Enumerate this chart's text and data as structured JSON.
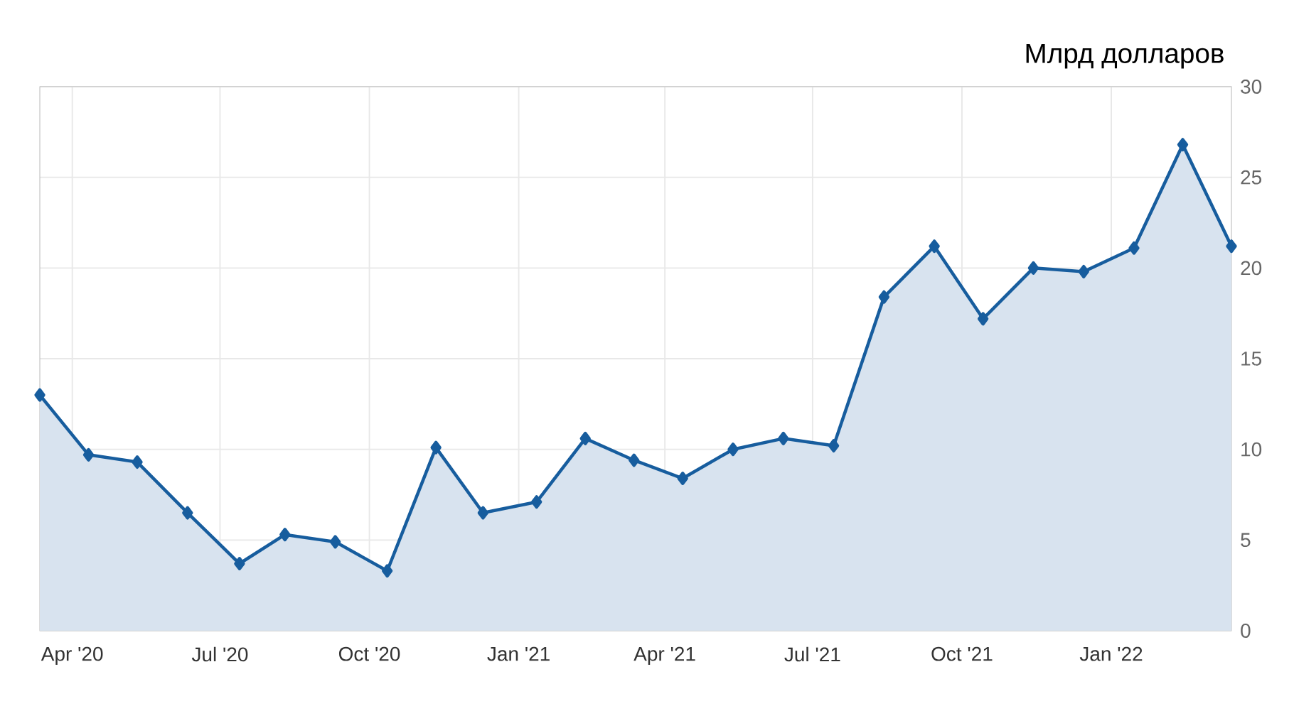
{
  "chart_data": {
    "type": "area",
    "ylabel": "Млрд долларов",
    "x": [
      "2020-03-12",
      "2020-04-11",
      "2020-05-11",
      "2020-06-11",
      "2020-07-13",
      "2020-08-10",
      "2020-09-10",
      "2020-10-12",
      "2020-11-11",
      "2020-12-10",
      "2021-01-12",
      "2021-02-11",
      "2021-03-13",
      "2021-04-12",
      "2021-05-13",
      "2021-06-13",
      "2021-07-14",
      "2021-08-14",
      "2021-09-14",
      "2021-10-14",
      "2021-11-14",
      "2021-12-15",
      "2022-01-15",
      "2022-02-14",
      "2022-03-16"
    ],
    "series": [
      {
        "color": "#175d9e",
        "values": [
          13.0,
          9.7,
          9.3,
          6.5,
          3.7,
          5.3,
          4.9,
          3.3,
          10.1,
          6.5,
          7.1,
          10.6,
          9.4,
          8.4,
          10.0,
          10.6,
          10.2,
          18.4,
          21.2,
          17.2,
          20.0,
          19.8,
          21.1,
          26.8,
          21.2
        ]
      }
    ],
    "xlim": [
      "2020-03-12",
      "2022-03-16"
    ],
    "xticks": [
      {
        "value": "2020-04-01",
        "label": "Apr '20"
      },
      {
        "value": "2020-07-01",
        "label": "Jul '20"
      },
      {
        "value": "2020-10-01",
        "label": "Oct '20"
      },
      {
        "value": "2021-01-01",
        "label": "Jan '21"
      },
      {
        "value": "2021-04-01",
        "label": "Apr '21"
      },
      {
        "value": "2021-07-01",
        "label": "Jul '21"
      },
      {
        "value": "2021-10-01",
        "label": "Oct '21"
      },
      {
        "value": "2022-01-01",
        "label": "Jan '22"
      }
    ],
    "ylim": [
      0,
      30
    ],
    "yticks": [
      0,
      5,
      10,
      15,
      20,
      25,
      30
    ],
    "grid": true,
    "marker": "diamond"
  }
}
